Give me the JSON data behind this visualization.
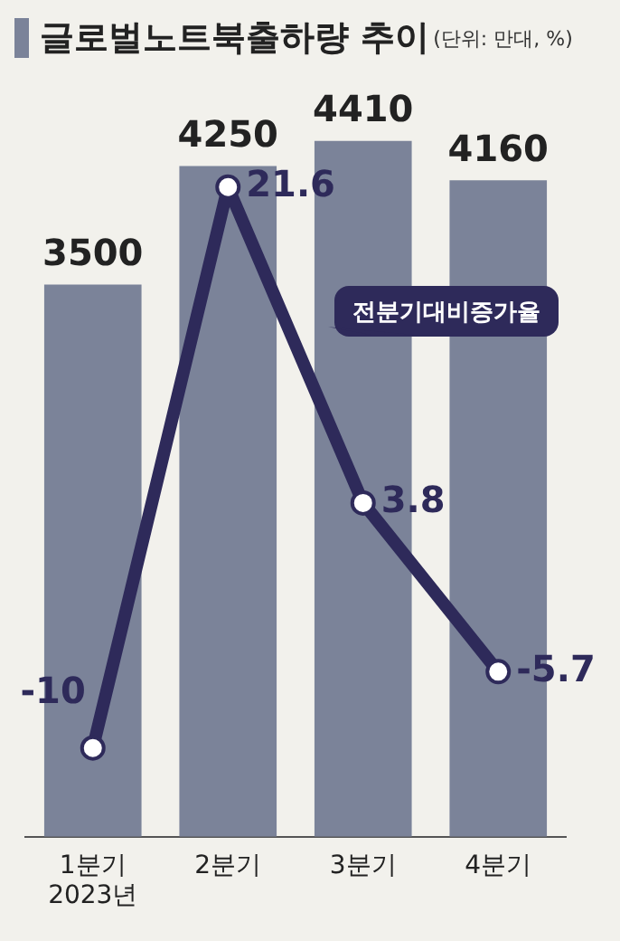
{
  "chart_data": {
    "type": "bar",
    "title": "글로벌노트북출하량 추이",
    "subtitle": "(단위: 만대, %)",
    "categories": [
      "1분기\n2023년",
      "2분기",
      "3분기",
      "4분기"
    ],
    "series": [
      {
        "color": "#7b8399",
        "values": [
          3500,
          4250,
          4410,
          4160
        ]
      },
      {
        "type": "line",
        "axis": "y2",
        "name": "전분기대비증가율",
        "color": "#2e2a5a",
        "values": [
          -10,
          21.6,
          3.8,
          -5.7
        ]
      }
    ],
    "data_labels": true,
    "marker": "circle",
    "tick_labels": "x"
  }
}
